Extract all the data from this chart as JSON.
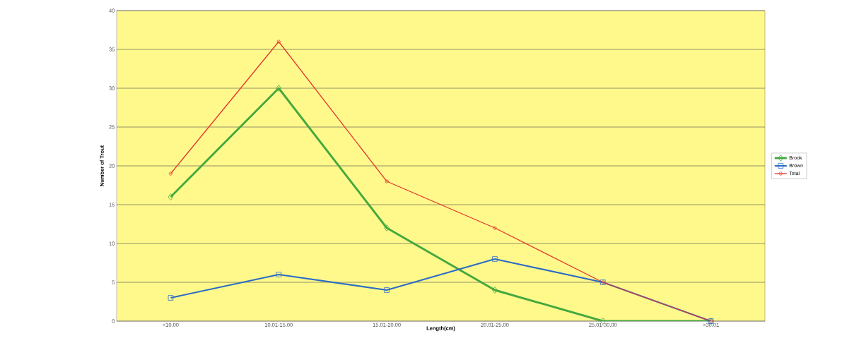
{
  "chart_data": {
    "type": "line",
    "xlabel": "Length(cm)",
    "ylabel": "Number of Trout",
    "categories": [
      "<10.00",
      "10.01-15.00",
      "15.01-20.00",
      "20.01-25.00",
      "25.01-30.00",
      ">30.01"
    ],
    "series": [
      {
        "name": "Brook",
        "color": "#45a83e",
        "marker": "diamond",
        "values": [
          16,
          30,
          12,
          4,
          0,
          0
        ]
      },
      {
        "name": "Brown",
        "color": "#2c6cc4",
        "marker": "square",
        "values": [
          3,
          6,
          4,
          8,
          5,
          0
        ]
      },
      {
        "name": "Total",
        "color": "#e6352c",
        "marker": "circle",
        "values": [
          19,
          36,
          18,
          12,
          5,
          0
        ]
      }
    ],
    "ylim": [
      0,
      40
    ],
    "yticks": [
      0,
      5,
      10,
      15,
      20,
      25,
      30,
      35,
      40
    ],
    "grid": "y",
    "legend": "right",
    "line_style": "solid"
  }
}
